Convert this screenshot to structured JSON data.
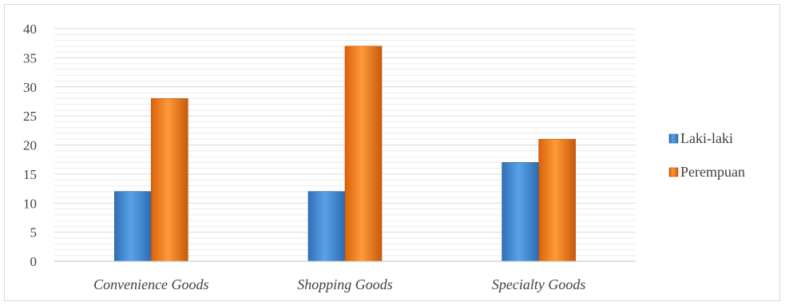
{
  "chart_data": {
    "type": "bar",
    "title": "",
    "xlabel": "",
    "ylabel": "",
    "categories": [
      "Convenience Goods",
      "Shopping Goods",
      "Specialty Goods"
    ],
    "series": [
      {
        "name": "Laki-laki",
        "values": [
          12,
          12,
          17
        ],
        "color": "#3b86d6"
      },
      {
        "name": "Perempuan",
        "values": [
          28,
          37,
          21
        ],
        "color": "#f07b12"
      }
    ],
    "ylim": [
      0,
      40
    ],
    "yticks": [
      0,
      5,
      10,
      15,
      20,
      25,
      30,
      35,
      40
    ],
    "grid": true,
    "legend_position": "right"
  }
}
